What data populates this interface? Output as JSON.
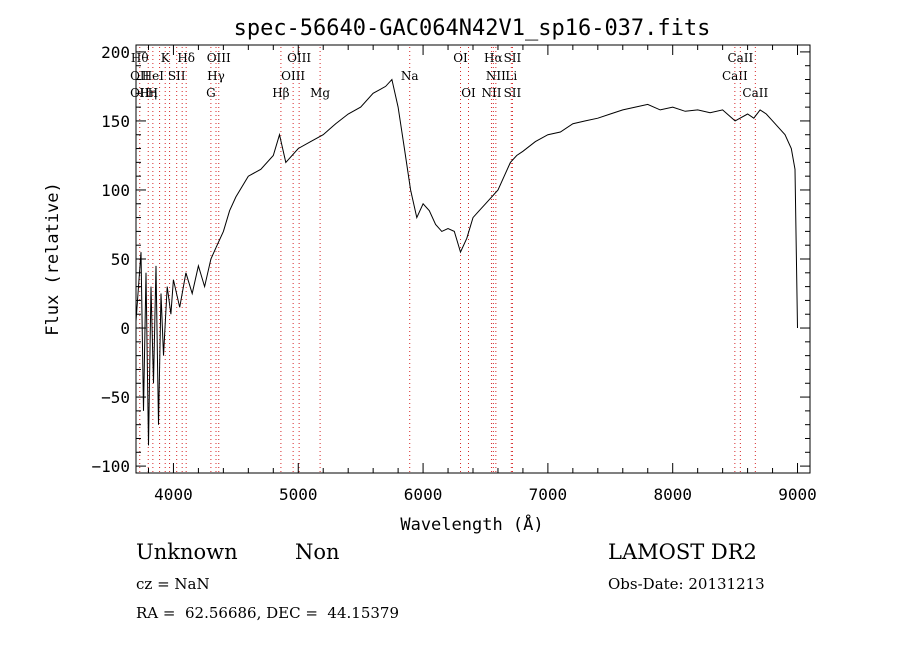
{
  "chart_data": {
    "type": "line",
    "title": "spec-56640-GAC064N42V1_sp16-037.fits",
    "xlabel": "Wavelength (Å)",
    "ylabel": "Flux (relative)",
    "xlim": [
      3700,
      9100
    ],
    "ylim": [
      -105,
      205
    ],
    "xticks": [
      4000,
      5000,
      6000,
      7000,
      8000,
      9000
    ],
    "xtick_labels": [
      "4000",
      "5000",
      "6000",
      "7000",
      "8000",
      "9000"
    ],
    "yticks": [
      -100,
      -50,
      0,
      50,
      100,
      150,
      200
    ],
    "ytick_labels": [
      "−100",
      "−50",
      "0",
      "50",
      "100",
      "150",
      "200"
    ],
    "grid": false,
    "legend": "none",
    "line_color": "#000000",
    "marker_color": "#d62728",
    "series": [
      {
        "x": [
          3700,
          3740,
          3760,
          3780,
          3800,
          3820,
          3840,
          3860,
          3880,
          3900,
          3920,
          3950,
          3980,
          4000,
          4050,
          4100,
          4150,
          4200,
          4250,
          4300,
          4350,
          4400,
          4450,
          4500,
          4600,
          4700,
          4800,
          4850,
          4900,
          5000,
          5100,
          5200,
          5300,
          5400,
          5500,
          5600,
          5700,
          5750,
          5800,
          5850,
          5900,
          5950,
          6000,
          6050,
          6100,
          6150,
          6200,
          6250,
          6300,
          6350,
          6400,
          6450,
          6500,
          6550,
          6600,
          6650,
          6700,
          6750,
          6800,
          6900,
          7000,
          7100,
          7200,
          7300,
          7400,
          7500,
          7600,
          7700,
          7800,
          7900,
          8000,
          8100,
          8200,
          8300,
          8400,
          8500,
          8600,
          8650,
          8700,
          8750,
          8800,
          8850,
          8900,
          8950,
          8980,
          9000
        ],
        "y": [
          5,
          55,
          -60,
          40,
          -85,
          30,
          -40,
          45,
          -70,
          25,
          -20,
          30,
          10,
          35,
          15,
          40,
          25,
          45,
          30,
          50,
          60,
          70,
          85,
          95,
          110,
          115,
          125,
          140,
          120,
          130,
          135,
          140,
          148,
          155,
          160,
          170,
          175,
          180,
          160,
          130,
          100,
          80,
          90,
          85,
          75,
          70,
          72,
          70,
          55,
          65,
          80,
          85,
          90,
          95,
          100,
          110,
          120,
          125,
          128,
          135,
          140,
          142,
          148,
          150,
          152,
          155,
          158,
          160,
          162,
          158,
          160,
          157,
          158,
          156,
          158,
          150,
          155,
          152,
          158,
          155,
          150,
          145,
          140,
          130,
          115,
          0
        ]
      }
    ],
    "lines": [
      {
        "x": 3730,
        "labels": [
          "Hθ",
          "OII",
          "OII"
        ]
      },
      {
        "x": 3798,
        "labels": [
          "",
          "",
          "Hη"
        ]
      },
      {
        "x": 3835,
        "labels": [
          "",
          "HeI",
          "H"
        ]
      },
      {
        "x": 3889,
        "labels": [
          "",
          "",
          ""
        ]
      },
      {
        "x": 3934,
        "labels": [
          "K",
          "",
          ""
        ]
      },
      {
        "x": 3969,
        "labels": [
          "",
          "",
          ""
        ]
      },
      {
        "x": 4026,
        "labels": [
          "",
          "SII",
          ""
        ]
      },
      {
        "x": 4070,
        "labels": [
          "",
          "",
          ""
        ]
      },
      {
        "x": 4102,
        "labels": [
          "Hδ",
          "",
          ""
        ]
      },
      {
        "x": 4300,
        "labels": [
          "",
          "",
          "G"
        ]
      },
      {
        "x": 4341,
        "labels": [
          "",
          "Hγ",
          ""
        ]
      },
      {
        "x": 4363,
        "labels": [
          "OIII",
          "",
          ""
        ]
      },
      {
        "x": 4861,
        "labels": [
          "",
          "",
          "Hβ"
        ]
      },
      {
        "x": 4959,
        "labels": [
          "",
          "OIII",
          ""
        ]
      },
      {
        "x": 5007,
        "labels": [
          "OIII",
          "",
          ""
        ]
      },
      {
        "x": 5175,
        "labels": [
          "",
          "",
          "Mg"
        ]
      },
      {
        "x": 5893,
        "labels": [
          "",
          "Na",
          ""
        ]
      },
      {
        "x": 6300,
        "labels": [
          "OI",
          "",
          ""
        ]
      },
      {
        "x": 6364,
        "labels": [
          "",
          "",
          "OI"
        ]
      },
      {
        "x": 6548,
        "labels": [
          "",
          "",
          "NII"
        ]
      },
      {
        "x": 6563,
        "labels": [
          "Hα",
          "",
          ""
        ]
      },
      {
        "x": 6583,
        "labels": [
          "",
          "NII",
          ""
        ]
      },
      {
        "x": 6707,
        "labels": [
          "",
          "Li",
          ""
        ]
      },
      {
        "x": 6716,
        "labels": [
          "SII",
          "",
          "SII"
        ]
      },
      {
        "x": 8498,
        "labels": [
          "",
          "CaII",
          ""
        ]
      },
      {
        "x": 8542,
        "labels": [
          "CaII",
          "",
          ""
        ]
      },
      {
        "x": 8662,
        "labels": [
          "",
          "",
          "CaII"
        ]
      }
    ]
  },
  "info": {
    "class": "Unknown",
    "subclass": "Non",
    "survey": "LAMOST DR2",
    "cz": "cz = NaN",
    "obs_date": "Obs-Date: 20131213",
    "coords": "RA =  62.56686, DEC =  44.15379"
  }
}
